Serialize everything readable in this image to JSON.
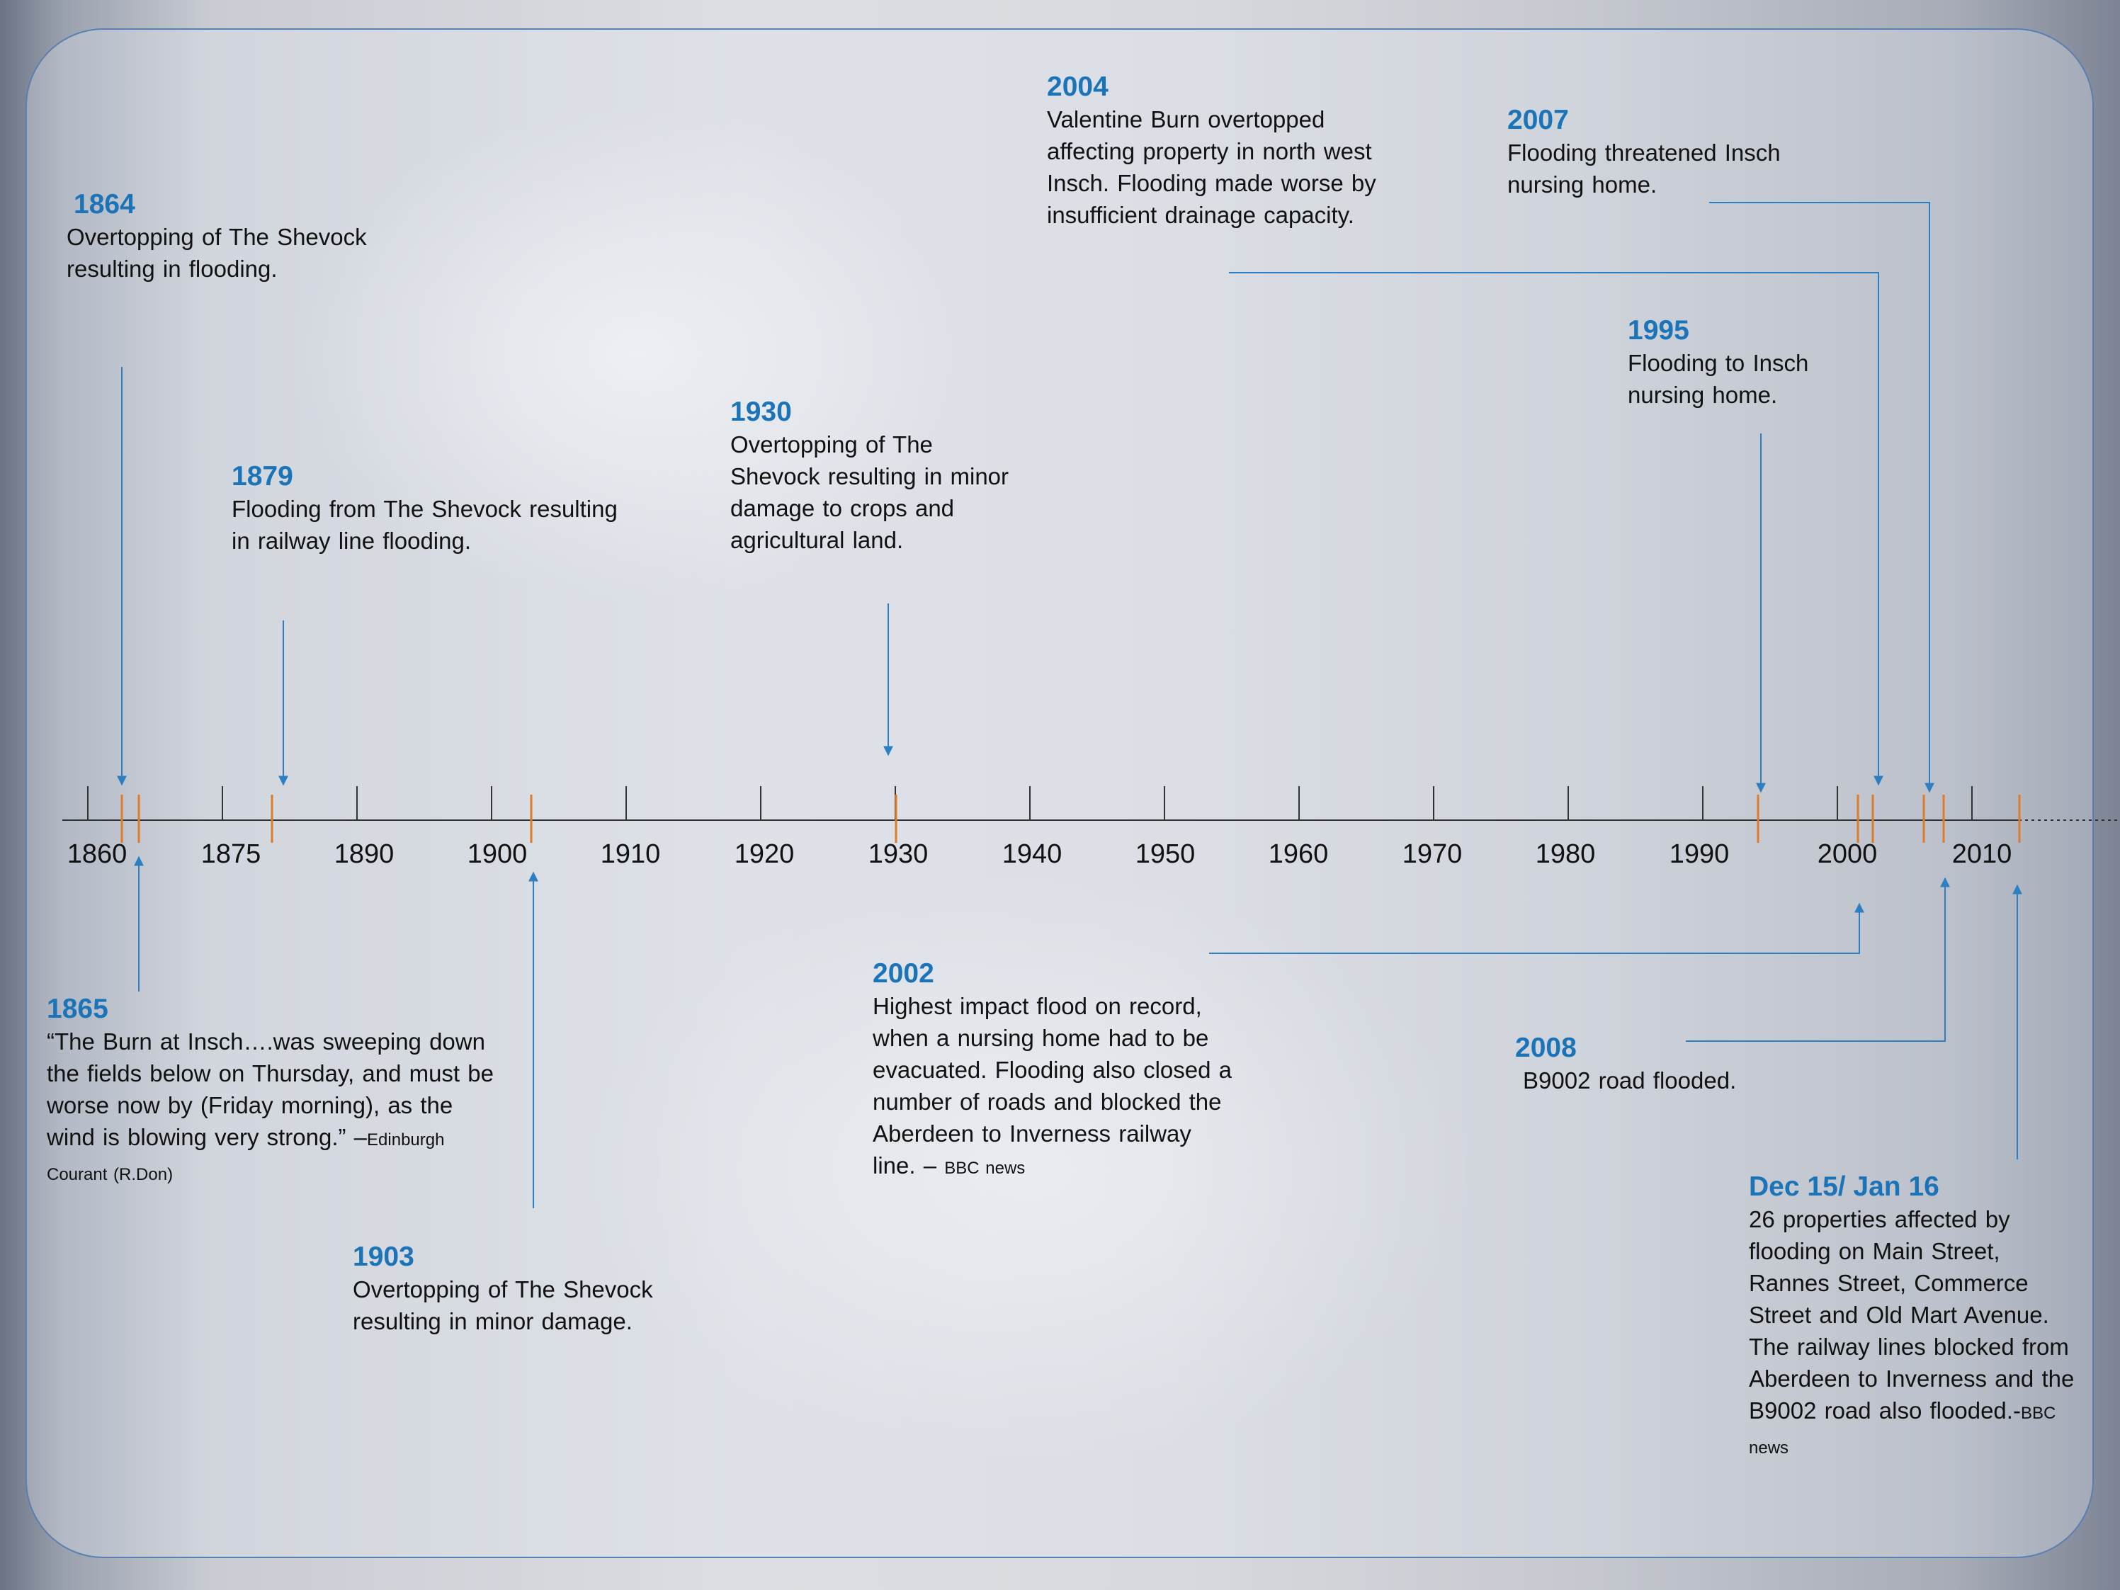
{
  "timeline": {
    "tick_labels": [
      "1860",
      "1875",
      "1890",
      "1900",
      "1910",
      "1920",
      "1930",
      "1940",
      "1950",
      "1960",
      "1970",
      "1980",
      "1990",
      "2000",
      "2010"
    ],
    "colors": {
      "axis": "#333333",
      "event_tick": "#e07b2a",
      "connector": "#2e7fc1",
      "year_text": "#1b73b8"
    }
  },
  "events": {
    "e1864": {
      "year": "1864",
      "text": "Overtopping of The Shevock resulting in flooding."
    },
    "e1879": {
      "year": "1879",
      "text": "Flooding from The Shevock resulting in railway line flooding."
    },
    "e1930": {
      "year": "1930",
      "text": "Overtopping of The Shevock resulting in minor damage to crops and agricultural land."
    },
    "e2004": {
      "year": "2004",
      "text": "Valentine Burn overtopped affecting property in north west Insch. Flooding made worse by insufficient drainage capacity."
    },
    "e2007": {
      "year": "2007",
      "text": "Flooding threatened Insch nursing home."
    },
    "e1995": {
      "year": "1995",
      "text": "Flooding to Insch nursing home."
    },
    "e1865": {
      "year": "1865",
      "text": "“The Burn at Insch….was sweeping down the fields below on Thursday, and must be worse now by (Friday morning), as the wind is blowing very strong.” –",
      "source": "Edinburgh Courant (R.Don)"
    },
    "e1903": {
      "year": "1903",
      "text": "Overtopping of The Shevock resulting in minor damage."
    },
    "e2002": {
      "year": "2002",
      "text": "Highest impact flood on record, when a nursing home had to be evacuated. Flooding also closed a number of roads and blocked the Aberdeen to Inverness railway line. –",
      "source": "BBC news"
    },
    "e2008": {
      "year": "2008",
      "text": "B9002 road flooded."
    },
    "e2015": {
      "year": "Dec 15/ Jan 16",
      "text": "26 properties affected by flooding on Main Street, Rannes Street, Commerce Street and Old Mart Avenue. The railway lines blocked from Aberdeen to Inverness and the B9002 road also flooded.-",
      "source": "BBC news"
    }
  }
}
